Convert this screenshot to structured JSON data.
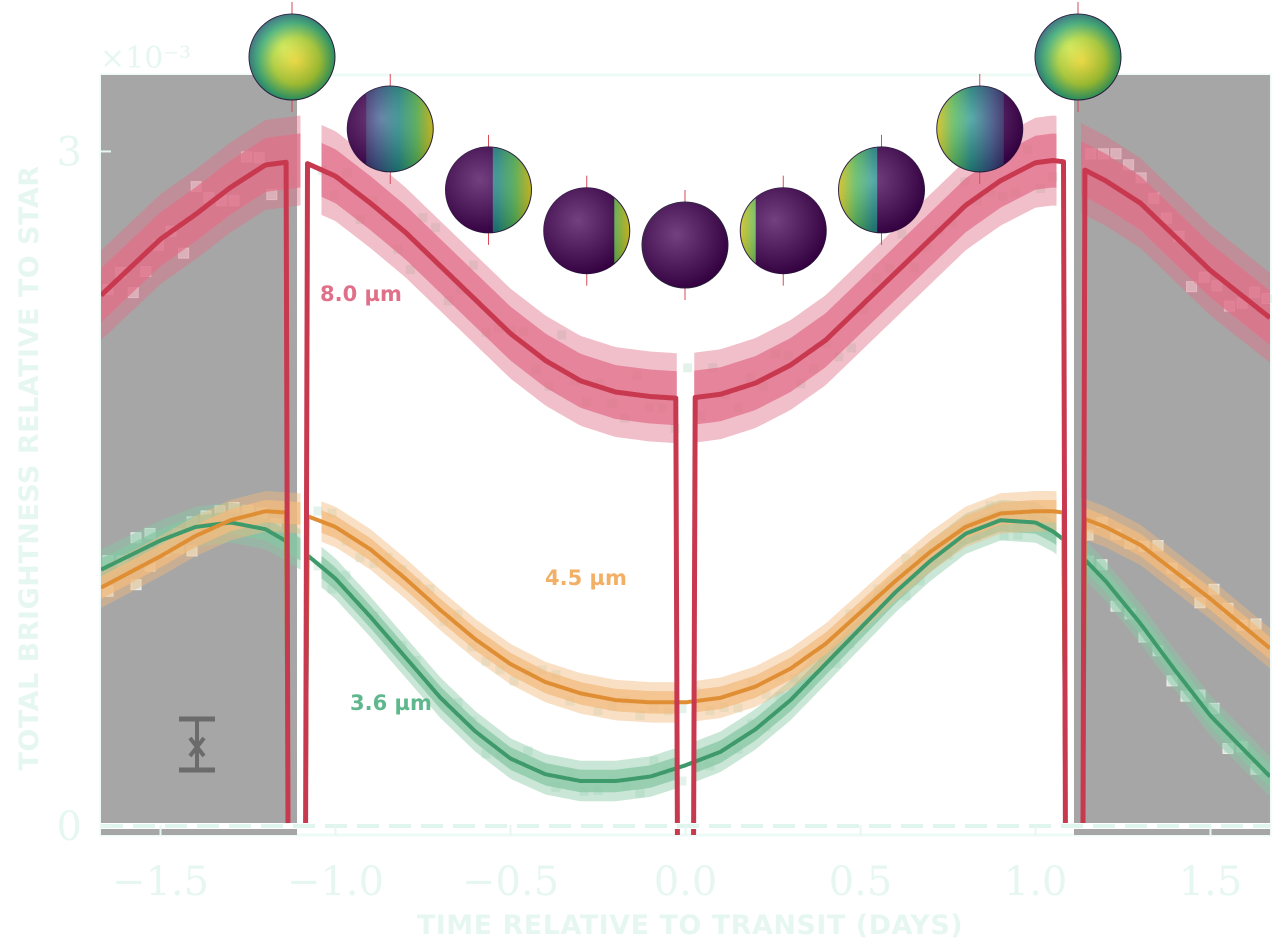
{
  "chart_data": {
    "type": "line",
    "xlabel": "TIME RELATIVE TO TRANSIT (DAYS)",
    "ylabel": "TOTAL BRIGHTNESS RELATIVE TO STAR",
    "exponent_label": "×10⁻³",
    "xlim": [
      -1.67,
      1.67
    ],
    "ylim": [
      -0.04,
      3.34
    ],
    "xticks": [
      {
        "value": -1.5,
        "label": "−1.5"
      },
      {
        "value": -1.0,
        "label": "−1.0"
      },
      {
        "value": -0.5,
        "label": "−0.5"
      },
      {
        "value": 0.0,
        "label": "0.0"
      },
      {
        "value": 0.5,
        "label": "0.5"
      },
      {
        "value": 1.0,
        "label": "1.0"
      },
      {
        "value": 1.5,
        "label": "1.5"
      }
    ],
    "yticks": [
      {
        "value": 0,
        "label": "0"
      },
      {
        "value": 3,
        "label": "3"
      }
    ],
    "grid": false,
    "eclipse_duration_days": 0.125,
    "transit_duration_days": 0.05,
    "shaded_regions": [
      {
        "x0": -1.67,
        "x1": -1.11,
        "color": "#a6a6a6"
      },
      {
        "x0": 1.11,
        "x1": 1.67,
        "color": "#a6a6a6"
      }
    ],
    "series": [
      {
        "label": "8.0 µm",
        "color": "#c8384e",
        "band_color": "#e0708a",
        "x": [
          -1.67,
          -1.5,
          -1.4,
          -1.3,
          -1.2,
          -1.1,
          -1.0,
          -0.9,
          -0.8,
          -0.7,
          -0.6,
          -0.5,
          -0.4,
          -0.3,
          -0.2,
          -0.1,
          0.0,
          0.1,
          0.2,
          0.3,
          0.4,
          0.5,
          0.6,
          0.7,
          0.8,
          0.9,
          1.0,
          1.05,
          1.1,
          1.2,
          1.3,
          1.4,
          1.5,
          1.67
        ],
        "y": [
          2.36,
          2.61,
          2.72,
          2.84,
          2.94,
          2.96,
          2.89,
          2.77,
          2.64,
          2.49,
          2.34,
          2.19,
          2.07,
          1.98,
          1.93,
          1.91,
          1.9,
          1.92,
          1.97,
          2.05,
          2.16,
          2.31,
          2.46,
          2.61,
          2.76,
          2.87,
          2.95,
          2.96,
          2.95,
          2.87,
          2.77,
          2.62,
          2.47,
          2.26
        ]
      },
      {
        "label": "4.5 µm",
        "color": "#e08e34",
        "band_color": "#f2bb7f",
        "x": [
          -1.67,
          -1.5,
          -1.4,
          -1.3,
          -1.2,
          -1.1,
          -1.0,
          -0.9,
          -0.8,
          -0.7,
          -0.6,
          -0.5,
          -0.4,
          -0.3,
          -0.2,
          -0.1,
          0.0,
          0.1,
          0.2,
          0.3,
          0.4,
          0.5,
          0.6,
          0.7,
          0.8,
          0.9,
          1.0,
          1.05,
          1.1,
          1.2,
          1.3,
          1.4,
          1.5,
          1.67
        ],
        "y": [
          1.06,
          1.2,
          1.29,
          1.36,
          1.4,
          1.39,
          1.33,
          1.23,
          1.1,
          0.96,
          0.83,
          0.72,
          0.64,
          0.59,
          0.56,
          0.55,
          0.55,
          0.57,
          0.62,
          0.7,
          0.81,
          0.95,
          1.09,
          1.22,
          1.33,
          1.39,
          1.4,
          1.4,
          1.39,
          1.33,
          1.25,
          1.13,
          1.01,
          0.79
        ]
      },
      {
        "label": "3.6 µm",
        "color": "#3f9a6b",
        "band_color": "#88c7a4",
        "x": [
          -1.67,
          -1.5,
          -1.4,
          -1.3,
          -1.2,
          -1.1,
          -1.0,
          -0.9,
          -0.8,
          -0.7,
          -0.6,
          -0.5,
          -0.4,
          -0.3,
          -0.2,
          -0.1,
          0.0,
          0.1,
          0.2,
          0.3,
          0.4,
          0.5,
          0.6,
          0.7,
          0.8,
          0.9,
          1.0,
          1.05,
          1.1,
          1.2,
          1.3,
          1.4,
          1.5,
          1.67
        ],
        "y": [
          1.14,
          1.27,
          1.33,
          1.35,
          1.32,
          1.23,
          1.1,
          0.93,
          0.75,
          0.57,
          0.42,
          0.3,
          0.23,
          0.2,
          0.2,
          0.22,
          0.27,
          0.33,
          0.43,
          0.56,
          0.72,
          0.88,
          1.04,
          1.18,
          1.3,
          1.36,
          1.35,
          1.31,
          1.25,
          1.09,
          0.9,
          0.69,
          0.49,
          0.22
        ]
      }
    ]
  },
  "annotations": {
    "label_8um": "8.0 µm",
    "label_45um": "4.5 µm",
    "label_36um": "3.6 µm"
  },
  "phase_spheres": {
    "count": 9,
    "colormap": [
      "#440154",
      "#3b528b",
      "#21918c",
      "#5ec962",
      "#fde725"
    ],
    "phases": [
      1.0,
      0.78,
      0.45,
      0.18,
      0.0,
      0.18,
      0.45,
      0.78,
      1.0
    ],
    "lit_side": [
      "full",
      "right",
      "right",
      "right",
      "none",
      "left",
      "left",
      "left",
      "full"
    ]
  },
  "scatter": {
    "marker": "square",
    "color": "#dff0e8"
  },
  "errorbar_glyph": {
    "name": "error-bar-icon",
    "color": "#6b6b6b"
  }
}
